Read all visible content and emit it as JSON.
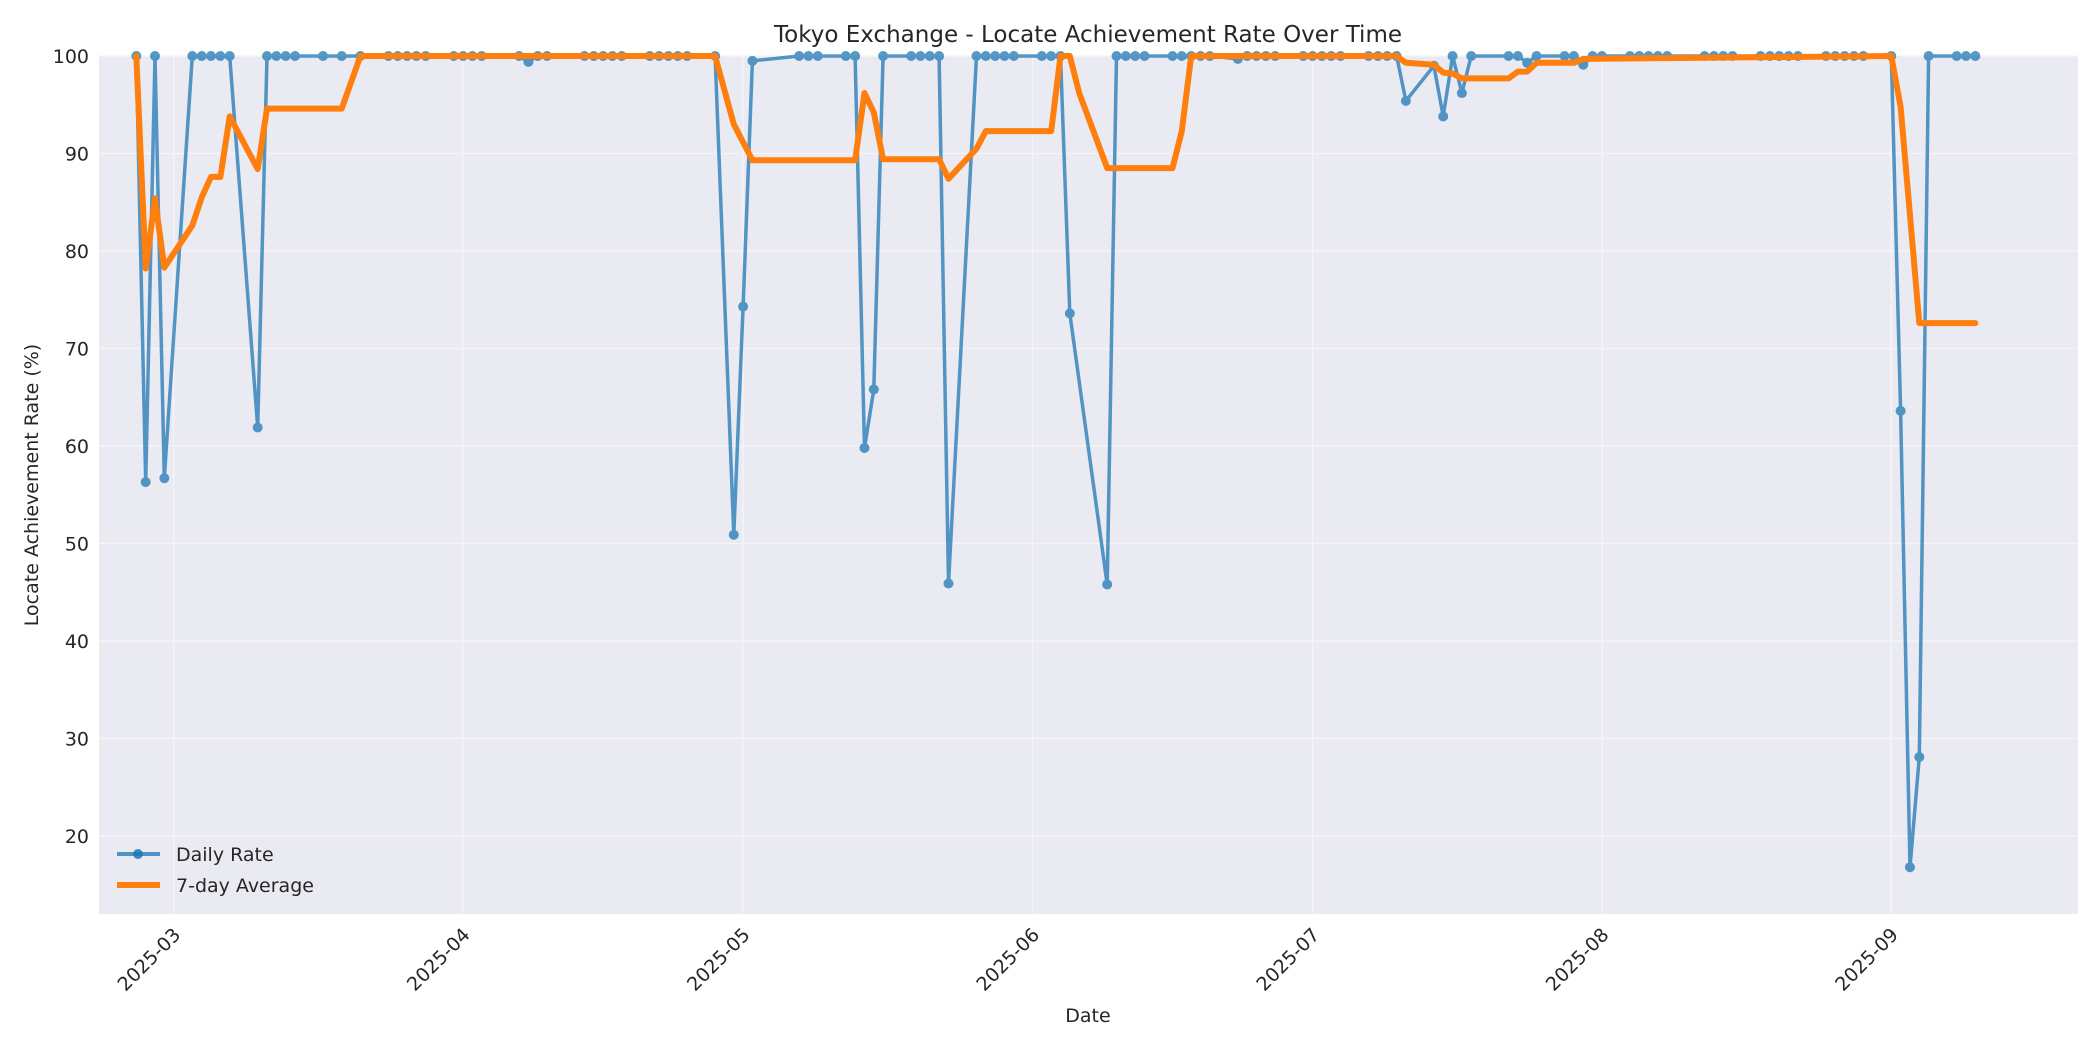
{
  "chart_data": {
    "type": "line",
    "title": "Tokyo Exchange - Locate Achievement Rate Over Time",
    "xlabel": "Date",
    "ylabel": "Locate Achievement Rate (%)",
    "ylim": [
      12,
      100
    ],
    "xlim": [
      "2025-02-21",
      "2025-09-21"
    ],
    "grid": true,
    "legend_position": "lower left",
    "x_ticks": [
      "2025-03",
      "2025-04",
      "2025-05",
      "2025-06",
      "2025-07",
      "2025-08",
      "2025-09"
    ],
    "y_ticks": [
      20,
      30,
      40,
      50,
      60,
      70,
      80,
      90,
      100
    ],
    "colors": {
      "daily": "#1f77b4",
      "avg": "#ff7f0e",
      "plot_bg": "#eaeaf2",
      "grid": "#f5f5f8"
    },
    "series": [
      {
        "name": "Daily Rate",
        "style": "line-marker",
        "points": [
          [
            "2025-02-25",
            100
          ],
          [
            "2025-02-26",
            56.3
          ],
          [
            "2025-02-27",
            100
          ],
          [
            "2025-02-28",
            56.7
          ],
          [
            "2025-03-03",
            100
          ],
          [
            "2025-03-04",
            100
          ],
          [
            "2025-03-05",
            100
          ],
          [
            "2025-03-06",
            100
          ],
          [
            "2025-03-07",
            100
          ],
          [
            "2025-03-10",
            61.9
          ],
          [
            "2025-03-11",
            100
          ],
          [
            "2025-03-12",
            100
          ],
          [
            "2025-03-13",
            100
          ],
          [
            "2025-03-14",
            100
          ],
          [
            "2025-03-17",
            100
          ],
          [
            "2025-03-19",
            100
          ],
          [
            "2025-03-21",
            100
          ],
          [
            "2025-03-24",
            100
          ],
          [
            "2025-03-25",
            100
          ],
          [
            "2025-03-26",
            100
          ],
          [
            "2025-03-27",
            100
          ],
          [
            "2025-03-28",
            100
          ],
          [
            "2025-03-31",
            100
          ],
          [
            "2025-04-01",
            100
          ],
          [
            "2025-04-02",
            100
          ],
          [
            "2025-04-03",
            100
          ],
          [
            "2025-04-07",
            100
          ],
          [
            "2025-04-08",
            99.4
          ],
          [
            "2025-04-09",
            100
          ],
          [
            "2025-04-10",
            100
          ],
          [
            "2025-04-14",
            100
          ],
          [
            "2025-04-15",
            100
          ],
          [
            "2025-04-16",
            100
          ],
          [
            "2025-04-17",
            100
          ],
          [
            "2025-04-18",
            100
          ],
          [
            "2025-04-21",
            100
          ],
          [
            "2025-04-22",
            100
          ],
          [
            "2025-04-23",
            100
          ],
          [
            "2025-04-24",
            100
          ],
          [
            "2025-04-25",
            100
          ],
          [
            "2025-04-28",
            100
          ],
          [
            "2025-04-30",
            50.9
          ],
          [
            "2025-05-01",
            74.3
          ],
          [
            "2025-05-02",
            99.5
          ],
          [
            "2025-05-07",
            100
          ],
          [
            "2025-05-08",
            100
          ],
          [
            "2025-05-09",
            100
          ],
          [
            "2025-05-12",
            100
          ],
          [
            "2025-05-13",
            100
          ],
          [
            "2025-05-14",
            59.8
          ],
          [
            "2025-05-15",
            65.8
          ],
          [
            "2025-05-16",
            100
          ],
          [
            "2025-05-19",
            100
          ],
          [
            "2025-05-20",
            100
          ],
          [
            "2025-05-21",
            100
          ],
          [
            "2025-05-22",
            100
          ],
          [
            "2025-05-23",
            45.9
          ],
          [
            "2025-05-26",
            100
          ],
          [
            "2025-05-27",
            100
          ],
          [
            "2025-05-28",
            100
          ],
          [
            "2025-05-29",
            100
          ],
          [
            "2025-05-30",
            100
          ],
          [
            "2025-06-02",
            100
          ],
          [
            "2025-06-03",
            100
          ],
          [
            "2025-06-04",
            100
          ],
          [
            "2025-06-05",
            73.6
          ],
          [
            "2025-06-09",
            45.8
          ],
          [
            "2025-06-10",
            100
          ],
          [
            "2025-06-11",
            100
          ],
          [
            "2025-06-12",
            100
          ],
          [
            "2025-06-13",
            100
          ],
          [
            "2025-06-16",
            100
          ],
          [
            "2025-06-17",
            100
          ],
          [
            "2025-06-18",
            100
          ],
          [
            "2025-06-19",
            100
          ],
          [
            "2025-06-20",
            100
          ],
          [
            "2025-06-23",
            99.7
          ],
          [
            "2025-06-24",
            100
          ],
          [
            "2025-06-25",
            100
          ],
          [
            "2025-06-26",
            100
          ],
          [
            "2025-06-27",
            100
          ],
          [
            "2025-06-30",
            100
          ],
          [
            "2025-07-01",
            100
          ],
          [
            "2025-07-02",
            100
          ],
          [
            "2025-07-03",
            100
          ],
          [
            "2025-07-04",
            100
          ],
          [
            "2025-07-07",
            100
          ],
          [
            "2025-07-08",
            100
          ],
          [
            "2025-07-09",
            100
          ],
          [
            "2025-07-10",
            100
          ],
          [
            "2025-07-11",
            95.4
          ],
          [
            "2025-07-14",
            99.0
          ],
          [
            "2025-07-15",
            93.8
          ],
          [
            "2025-07-16",
            100
          ],
          [
            "2025-07-17",
            96.2
          ],
          [
            "2025-07-18",
            100
          ],
          [
            "2025-07-22",
            100
          ],
          [
            "2025-07-23",
            100
          ],
          [
            "2025-07-24",
            99.3
          ],
          [
            "2025-07-25",
            100
          ],
          [
            "2025-07-28",
            100
          ],
          [
            "2025-07-29",
            100
          ],
          [
            "2025-07-30",
            99.1
          ],
          [
            "2025-07-31",
            100
          ],
          [
            "2025-08-01",
            100
          ],
          [
            "2025-08-04",
            100
          ],
          [
            "2025-08-05",
            100
          ],
          [
            "2025-08-06",
            100
          ],
          [
            "2025-08-07",
            100
          ],
          [
            "2025-08-08",
            100
          ],
          [
            "2025-08-12",
            100
          ],
          [
            "2025-08-13",
            100
          ],
          [
            "2025-08-14",
            100
          ],
          [
            "2025-08-15",
            100
          ],
          [
            "2025-08-18",
            100
          ],
          [
            "2025-08-19",
            100
          ],
          [
            "2025-08-20",
            100
          ],
          [
            "2025-08-21",
            100
          ],
          [
            "2025-08-22",
            100
          ],
          [
            "2025-08-25",
            100
          ],
          [
            "2025-08-26",
            100
          ],
          [
            "2025-08-27",
            100
          ],
          [
            "2025-08-28",
            100
          ],
          [
            "2025-08-29",
            100
          ],
          [
            "2025-09-01",
            100
          ],
          [
            "2025-09-02",
            63.6
          ],
          [
            "2025-09-03",
            16.8
          ],
          [
            "2025-09-04",
            28.1
          ],
          [
            "2025-09-05",
            100
          ],
          [
            "2025-09-08",
            100
          ],
          [
            "2025-09-09",
            100
          ],
          [
            "2025-09-10",
            100
          ]
        ]
      },
      {
        "name": "7-day Average",
        "style": "line",
        "points": [
          [
            "2025-02-25",
            100
          ],
          [
            "2025-02-26",
            78.2
          ],
          [
            "2025-02-27",
            85.4
          ],
          [
            "2025-02-28",
            78.3
          ],
          [
            "2025-03-03",
            82.6
          ],
          [
            "2025-03-04",
            85.5
          ],
          [
            "2025-03-05",
            87.6
          ],
          [
            "2025-03-06",
            87.6
          ],
          [
            "2025-03-07",
            93.8
          ],
          [
            "2025-03-10",
            88.4
          ],
          [
            "2025-03-11",
            94.6
          ],
          [
            "2025-03-12",
            94.6
          ],
          [
            "2025-03-13",
            94.6
          ],
          [
            "2025-03-14",
            94.6
          ],
          [
            "2025-03-17",
            94.6
          ],
          [
            "2025-03-19",
            94.6
          ],
          [
            "2025-03-21",
            100
          ],
          [
            "2025-04-28",
            100
          ],
          [
            "2025-04-30",
            93.0
          ],
          [
            "2025-05-02",
            89.3
          ],
          [
            "2025-05-13",
            89.3
          ],
          [
            "2025-05-14",
            96.2
          ],
          [
            "2025-05-15",
            94.2
          ],
          [
            "2025-05-16",
            89.4
          ],
          [
            "2025-05-22",
            89.4
          ],
          [
            "2025-05-23",
            87.4
          ],
          [
            "2025-05-26",
            90.5
          ],
          [
            "2025-05-27",
            92.3
          ],
          [
            "2025-06-03",
            92.3
          ],
          [
            "2025-06-04",
            100
          ],
          [
            "2025-06-05",
            100
          ],
          [
            "2025-06-06",
            96.2
          ],
          [
            "2025-06-09",
            88.5
          ],
          [
            "2025-06-16",
            88.5
          ],
          [
            "2025-06-17",
            92.3
          ],
          [
            "2025-06-18",
            100
          ],
          [
            "2025-07-10",
            100
          ],
          [
            "2025-07-11",
            99.3
          ],
          [
            "2025-07-14",
            99.1
          ],
          [
            "2025-07-15",
            98.3
          ],
          [
            "2025-07-16",
            98.2
          ],
          [
            "2025-07-17",
            97.7
          ],
          [
            "2025-07-22",
            97.7
          ],
          [
            "2025-07-23",
            98.4
          ],
          [
            "2025-07-24",
            98.4
          ],
          [
            "2025-07-25",
            99.3
          ],
          [
            "2025-07-29",
            99.3
          ],
          [
            "2025-07-30",
            99.7
          ],
          [
            "2025-09-01",
            100
          ],
          [
            "2025-09-02",
            94.8
          ],
          [
            "2025-09-04",
            72.6
          ],
          [
            "2025-09-10",
            72.6
          ]
        ]
      }
    ],
    "legend": [
      {
        "label": "Daily Rate",
        "color": "#1f77b4",
        "marker": true
      },
      {
        "label": "7-day Average",
        "color": "#ff7f0e",
        "marker": false
      }
    ]
  }
}
